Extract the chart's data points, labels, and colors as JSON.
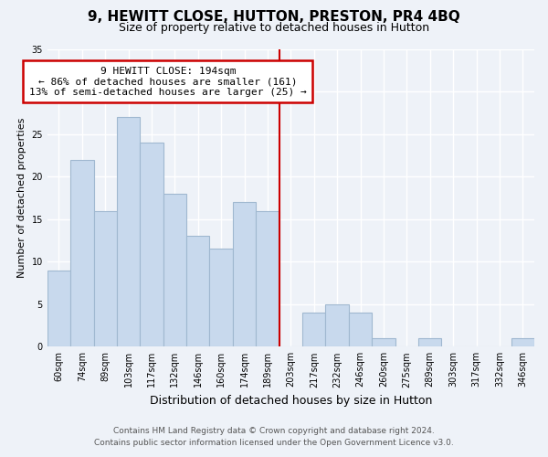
{
  "title": "9, HEWITT CLOSE, HUTTON, PRESTON, PR4 4BQ",
  "subtitle": "Size of property relative to detached houses in Hutton",
  "xlabel": "Distribution of detached houses by size in Hutton",
  "ylabel": "Number of detached properties",
  "categories": [
    "60sqm",
    "74sqm",
    "89sqm",
    "103sqm",
    "117sqm",
    "132sqm",
    "146sqm",
    "160sqm",
    "174sqm",
    "189sqm",
    "203sqm",
    "217sqm",
    "232sqm",
    "246sqm",
    "260sqm",
    "275sqm",
    "289sqm",
    "303sqm",
    "317sqm",
    "332sqm",
    "346sqm"
  ],
  "values": [
    9,
    22,
    16,
    27,
    24,
    18,
    13,
    11.5,
    17,
    16,
    0,
    4,
    5,
    4,
    1,
    0,
    1,
    0,
    0,
    0,
    1
  ],
  "bar_color": "#c8d9ed",
  "bar_edge_color": "#a0b8d0",
  "ref_line_color": "#cc0000",
  "pct_smaller": 86,
  "pct_smaller_count": 161,
  "pct_larger": 13,
  "pct_larger_count": 25,
  "ylim": [
    0,
    35
  ],
  "yticks": [
    0,
    5,
    10,
    15,
    20,
    25,
    30,
    35
  ],
  "annotation_box_color": "#ffffff",
  "annotation_box_edge": "#cc0000",
  "footer_line1": "Contains HM Land Registry data © Crown copyright and database right 2024.",
  "footer_line2": "Contains public sector information licensed under the Open Government Licence v3.0.",
  "background_color": "#eef2f8"
}
